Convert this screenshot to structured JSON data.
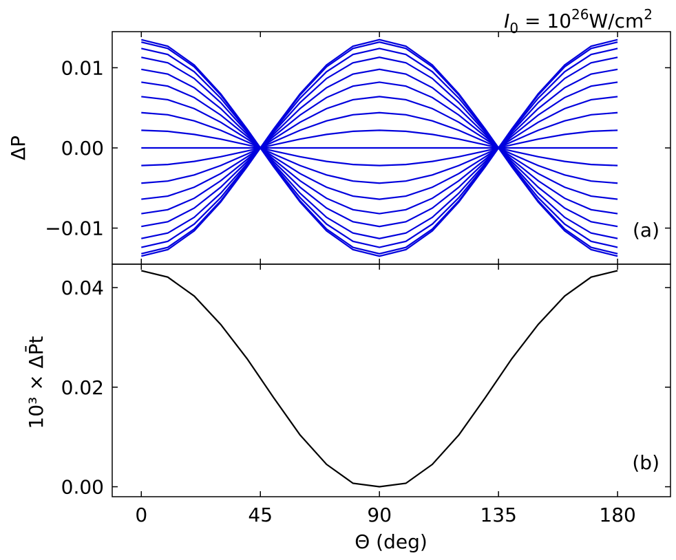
{
  "title": {
    "sym": "I",
    "sub": "0",
    "eq": " = 10",
    "exp": "26",
    "unit": "W/cm",
    "unit_exp": "2"
  },
  "chart_data": [
    {
      "type": "line",
      "panel_label": "(a)",
      "ylabel": "ΔP",
      "xlim": [
        -11,
        200
      ],
      "ylim": [
        -0.0145,
        0.0145
      ],
      "x": [
        0,
        10,
        20,
        30,
        40,
        50,
        60,
        70,
        80,
        90,
        100,
        110,
        120,
        130,
        140,
        150,
        160,
        170,
        180
      ],
      "xticks": [
        0,
        45,
        90,
        135,
        180
      ],
      "yticks": [
        -0.01,
        0.0,
        0.01
      ],
      "ytick_labels": [
        "−0.01",
        "0.00",
        "0.01"
      ],
      "color": "#0000dd",
      "amplitudes": [
        0.0135,
        0.0132,
        0.0124,
        0.0113,
        0.0098,
        0.0082,
        0.0064,
        0.0044,
        0.0022,
        0.0,
        -0.0022,
        -0.0044,
        -0.0064,
        -0.0082,
        -0.0098,
        -0.0113,
        -0.0124,
        -0.0132,
        -0.0135
      ],
      "shape": "amplitude × cos(2Θ) envelope, zero at 90°"
    },
    {
      "type": "line",
      "panel_label": "(b)",
      "ylabel": "10³ × ΔP̄t",
      "xlabel": "Θ (deg)",
      "xlim": [
        -11,
        200
      ],
      "ylim": [
        -0.002,
        0.0447
      ],
      "x": [
        0,
        10,
        20,
        30,
        40,
        50,
        60,
        70,
        80,
        90,
        100,
        110,
        120,
        130,
        140,
        150,
        160,
        170,
        180
      ],
      "y": [
        0.0434,
        0.0421,
        0.0383,
        0.0326,
        0.0257,
        0.0179,
        0.0104,
        0.0045,
        0.0007,
        0.0,
        0.0007,
        0.0045,
        0.0104,
        0.0179,
        0.0257,
        0.0326,
        0.0383,
        0.0421,
        0.0434
      ],
      "xticks": [
        0,
        45,
        90,
        135,
        180
      ],
      "yticks": [
        0.0,
        0.02,
        0.04
      ],
      "ytick_labels": [
        "0.00",
        "0.02",
        "0.04"
      ],
      "color": "#000000"
    }
  ]
}
